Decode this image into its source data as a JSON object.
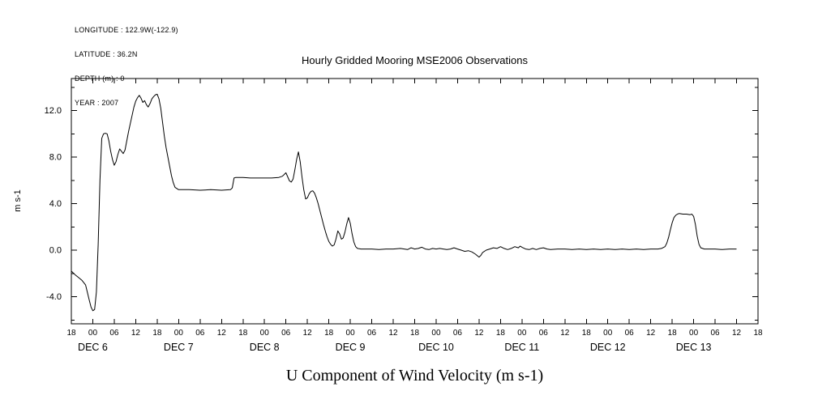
{
  "meta": {
    "lines": [
      "LONGITUDE : 122.9W(-122.9)",
      "LATITUDE : 36.2N",
      "DEPTH (m) : 0",
      "YEAR : 2007"
    ]
  },
  "title": "Hourly Gridded Mooring MSE2006 Observations",
  "axis": {
    "y_label": "m s-1",
    "x_title": "U Component of Wind Velocity (m s-1)"
  },
  "chart_data": {
    "type": "line",
    "title": "Hourly Gridded Mooring MSE2006 Observations",
    "xlabel": "U Component of Wind Velocity (m s-1)",
    "ylabel": "m s-1",
    "grid": false,
    "legend": "none",
    "x_axis_description": "time, hours from DEC 5 18:00 to DEC 13 18:00, tick every 6 hours",
    "xlim_hours": [
      0,
      192
    ],
    "x_tick_step_hours": 6,
    "x_tick_labels": [
      "18",
      "00",
      "06",
      "12",
      "18",
      "00",
      "06",
      "12",
      "18",
      "00",
      "06",
      "12",
      "18",
      "00",
      "06",
      "12",
      "18",
      "00",
      "06",
      "12",
      "18",
      "00",
      "06",
      "12",
      "18",
      "00",
      "06",
      "12",
      "18",
      "00",
      "06",
      "12",
      "18"
    ],
    "day_labels": [
      "DEC 6",
      "DEC 7",
      "DEC 8",
      "DEC 9",
      "DEC 10",
      "DEC 11",
      "DEC 12",
      "DEC 13"
    ],
    "day_label_hours": [
      6,
      30,
      54,
      78,
      102,
      126,
      150,
      174
    ],
    "y_ticks": [
      -4.0,
      0.0,
      4.0,
      8.0,
      12.0
    ],
    "y_tick_labels": [
      "-4.0",
      "0.0",
      "4.0",
      "8.0",
      "12.0"
    ],
    "y_minor_ticks": [
      -6,
      -2,
      2,
      6,
      10,
      14
    ],
    "ylim": [
      -6.33,
      14.75
    ],
    "series": [
      {
        "name": "u-wind-velocity",
        "points": [
          [
            0,
            -1.8
          ],
          [
            1,
            -2.1
          ],
          [
            2,
            -2.35
          ],
          [
            3,
            -2.6
          ],
          [
            4,
            -3.0
          ],
          [
            5,
            -4.3
          ],
          [
            5.5,
            -4.9
          ],
          [
            6,
            -5.2
          ],
          [
            6.5,
            -5.1
          ],
          [
            7,
            -3.6
          ],
          [
            7.5,
            0.5
          ],
          [
            8,
            6.0
          ],
          [
            8.5,
            9.6
          ],
          [
            9,
            10.0
          ],
          [
            9.5,
            10.05
          ],
          [
            10,
            10.0
          ],
          [
            10.5,
            9.4
          ],
          [
            11,
            8.5
          ],
          [
            11.5,
            7.8
          ],
          [
            12,
            7.3
          ],
          [
            12.5,
            7.6
          ],
          [
            13,
            8.2
          ],
          [
            13.5,
            8.7
          ],
          [
            14,
            8.5
          ],
          [
            14.5,
            8.3
          ],
          [
            15,
            8.6
          ],
          [
            15.5,
            9.4
          ],
          [
            16,
            10.2
          ],
          [
            16.5,
            10.9
          ],
          [
            17,
            11.6
          ],
          [
            17.5,
            12.3
          ],
          [
            18,
            12.8
          ],
          [
            18.5,
            13.1
          ],
          [
            19,
            13.3
          ],
          [
            19.5,
            13.05
          ],
          [
            20,
            12.7
          ],
          [
            20.5,
            12.85
          ],
          [
            21,
            12.5
          ],
          [
            21.5,
            12.3
          ],
          [
            22,
            12.6
          ],
          [
            22.5,
            13.0
          ],
          [
            23,
            13.2
          ],
          [
            23.5,
            13.35
          ],
          [
            24,
            13.4
          ],
          [
            24.5,
            13.0
          ],
          [
            25,
            12.2
          ],
          [
            25.5,
            11.0
          ],
          [
            26,
            9.8
          ],
          [
            26.5,
            8.8
          ],
          [
            27,
            8.0
          ],
          [
            27.5,
            7.2
          ],
          [
            28,
            6.4
          ],
          [
            28.5,
            5.8
          ],
          [
            29,
            5.4
          ],
          [
            30,
            5.2
          ],
          [
            33,
            5.2
          ],
          [
            36,
            5.15
          ],
          [
            39,
            5.2
          ],
          [
            42,
            5.15
          ],
          [
            44.5,
            5.2
          ],
          [
            45,
            5.35
          ],
          [
            45.5,
            6.2
          ],
          [
            46,
            6.25
          ],
          [
            48,
            6.25
          ],
          [
            50,
            6.2
          ],
          [
            52,
            6.2
          ],
          [
            54,
            6.2
          ],
          [
            56,
            6.2
          ],
          [
            58,
            6.25
          ],
          [
            59,
            6.35
          ],
          [
            59.5,
            6.5
          ],
          [
            60,
            6.65
          ],
          [
            60.5,
            6.3
          ],
          [
            61,
            5.95
          ],
          [
            61.5,
            5.85
          ],
          [
            62,
            6.1
          ],
          [
            62.5,
            6.9
          ],
          [
            63,
            7.8
          ],
          [
            63.5,
            8.45
          ],
          [
            64,
            7.6
          ],
          [
            64.5,
            6.3
          ],
          [
            65,
            5.2
          ],
          [
            65.5,
            4.4
          ],
          [
            66,
            4.5
          ],
          [
            66.5,
            4.85
          ],
          [
            67,
            5.05
          ],
          [
            67.5,
            5.1
          ],
          [
            68,
            4.9
          ],
          [
            68.5,
            4.5
          ],
          [
            69,
            4.0
          ],
          [
            69.5,
            3.4
          ],
          [
            70,
            2.8
          ],
          [
            70.5,
            2.2
          ],
          [
            71,
            1.65
          ],
          [
            71.5,
            1.15
          ],
          [
            72,
            0.75
          ],
          [
            72.5,
            0.5
          ],
          [
            73,
            0.35
          ],
          [
            73.5,
            0.45
          ],
          [
            74,
            0.95
          ],
          [
            74.5,
            1.65
          ],
          [
            75,
            1.4
          ],
          [
            75.5,
            0.95
          ],
          [
            76,
            1.05
          ],
          [
            76.5,
            1.55
          ],
          [
            77,
            2.25
          ],
          [
            77.5,
            2.8
          ],
          [
            78,
            2.3
          ],
          [
            78.5,
            1.4
          ],
          [
            79,
            0.7
          ],
          [
            79.5,
            0.3
          ],
          [
            80,
            0.15
          ],
          [
            81,
            0.1
          ],
          [
            82,
            0.1
          ],
          [
            84,
            0.1
          ],
          [
            86,
            0.05
          ],
          [
            88,
            0.1
          ],
          [
            90,
            0.1
          ],
          [
            92,
            0.15
          ],
          [
            94,
            0.05
          ],
          [
            95,
            0.2
          ],
          [
            96,
            0.1
          ],
          [
            97,
            0.15
          ],
          [
            98,
            0.25
          ],
          [
            99,
            0.1
          ],
          [
            100,
            0.05
          ],
          [
            101,
            0.15
          ],
          [
            102,
            0.1
          ],
          [
            103,
            0.15
          ],
          [
            104,
            0.1
          ],
          [
            105,
            0.05
          ],
          [
            106,
            0.1
          ],
          [
            107,
            0.2
          ],
          [
            108,
            0.1
          ],
          [
            109,
            0.0
          ],
          [
            110,
            -0.1
          ],
          [
            111,
            -0.05
          ],
          [
            112,
            -0.15
          ],
          [
            113,
            -0.35
          ],
          [
            114,
            -0.6
          ],
          [
            114.5,
            -0.45
          ],
          [
            115,
            -0.2
          ],
          [
            116,
            0.0
          ],
          [
            117,
            0.1
          ],
          [
            118,
            0.2
          ],
          [
            119,
            0.15
          ],
          [
            120,
            0.3
          ],
          [
            121,
            0.15
          ],
          [
            122,
            0.05
          ],
          [
            123,
            0.15
          ],
          [
            124,
            0.3
          ],
          [
            125,
            0.2
          ],
          [
            125.5,
            0.35
          ],
          [
            126,
            0.25
          ],
          [
            127,
            0.1
          ],
          [
            128,
            0.05
          ],
          [
            129,
            0.15
          ],
          [
            130,
            0.05
          ],
          [
            131,
            0.15
          ],
          [
            132,
            0.2
          ],
          [
            133,
            0.1
          ],
          [
            134,
            0.05
          ],
          [
            136,
            0.1
          ],
          [
            138,
            0.1
          ],
          [
            140,
            0.05
          ],
          [
            142,
            0.1
          ],
          [
            144,
            0.05
          ],
          [
            146,
            0.1
          ],
          [
            148,
            0.05
          ],
          [
            150,
            0.1
          ],
          [
            152,
            0.05
          ],
          [
            154,
            0.1
          ],
          [
            156,
            0.05
          ],
          [
            158,
            0.1
          ],
          [
            160,
            0.05
          ],
          [
            162,
            0.1
          ],
          [
            164,
            0.1
          ],
          [
            165,
            0.15
          ],
          [
            166,
            0.3
          ],
          [
            166.5,
            0.6
          ],
          [
            167,
            1.1
          ],
          [
            167.5,
            1.75
          ],
          [
            168,
            2.35
          ],
          [
            168.5,
            2.8
          ],
          [
            169,
            3.0
          ],
          [
            169.5,
            3.1
          ],
          [
            170,
            3.15
          ],
          [
            171,
            3.1
          ],
          [
            172,
            3.1
          ],
          [
            173,
            3.05
          ],
          [
            173.5,
            3.1
          ],
          [
            174,
            2.9
          ],
          [
            174.5,
            2.2
          ],
          [
            175,
            1.2
          ],
          [
            175.5,
            0.5
          ],
          [
            176,
            0.2
          ],
          [
            177,
            0.1
          ],
          [
            178,
            0.1
          ],
          [
            180,
            0.1
          ],
          [
            182,
            0.05
          ],
          [
            184,
            0.1
          ],
          [
            185,
            0.1
          ],
          [
            186,
            0.1
          ]
        ]
      }
    ]
  }
}
